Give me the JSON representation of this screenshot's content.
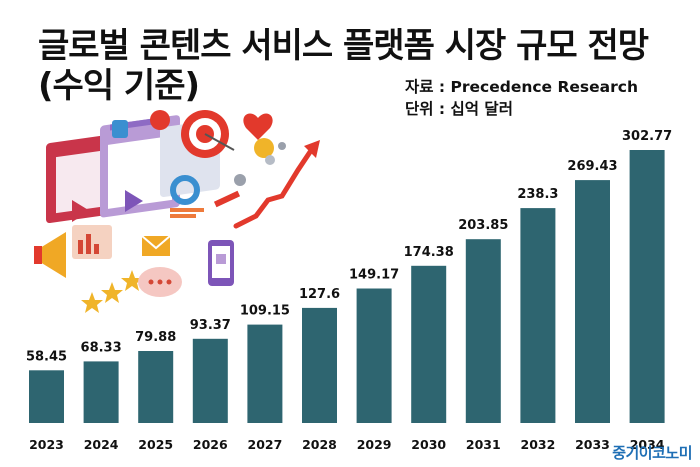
{
  "header": {
    "title_line1": "글로벌 콘텐츠 서비스 플랫폼 시장 규모 전망",
    "title_line2": "(수익 기준)",
    "source": "자료 : Precedence Research",
    "unit": "단위 : 십억 달러"
  },
  "watermark": "중기이코노미",
  "colors": {
    "bar": "#2e6570",
    "text": "#111111",
    "accent_red": "#e2392c",
    "accent_blue": "#1f6fb5"
  },
  "illustration": {
    "icon": "digital-content-marketing-illustration"
  },
  "chart_data": {
    "type": "bar",
    "title": "글로벌 콘텐츠 서비스 플랫폼 시장 규모 전망 (수익 기준)",
    "categories": [
      "2023",
      "2024",
      "2025",
      "2026",
      "2027",
      "2028",
      "2029",
      "2030",
      "2031",
      "2032",
      "2033",
      "2034"
    ],
    "values": [
      58.45,
      68.33,
      79.88,
      93.37,
      109.15,
      127.6,
      149.17,
      174.38,
      203.85,
      238.3,
      269.43,
      302.77
    ],
    "data_labels": [
      "58.45",
      "68.33",
      "79.88",
      "93.37",
      "109.15",
      "127.6",
      "149.17",
      "174.38",
      "203.85",
      "238.3",
      "269.43",
      "302.77"
    ],
    "ylim": [
      0,
      302.77
    ],
    "grid": false,
    "legend": "none"
  }
}
